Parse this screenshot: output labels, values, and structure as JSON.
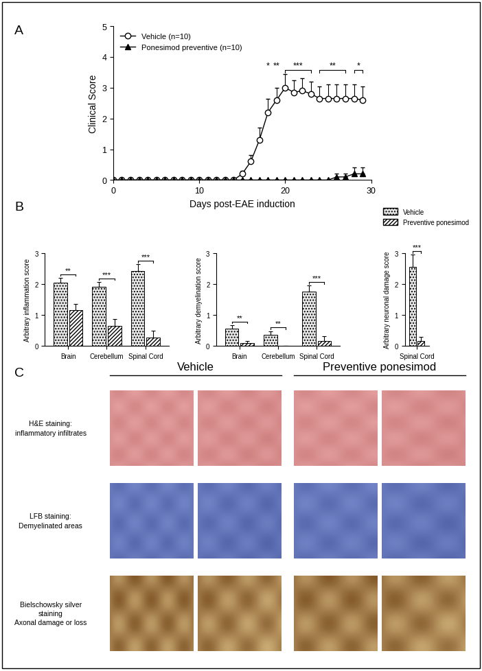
{
  "panel_labels": [
    "A",
    "B",
    "C"
  ],
  "chart_data": [
    {
      "type": "line",
      "xlabel": "Days post-EAE induction",
      "ylabel": "Clinical Score",
      "x": [
        0,
        1,
        2,
        3,
        4,
        5,
        6,
        7,
        8,
        9,
        10,
        11,
        12,
        13,
        14,
        15,
        16,
        17,
        18,
        19,
        20,
        21,
        22,
        23,
        24,
        25,
        26,
        27,
        28,
        29
      ],
      "series": [
        {
          "name": "Vehicle (n=10)",
          "color": "#000000",
          "marker": "o",
          "values": [
            0,
            0,
            0,
            0,
            0,
            0,
            0,
            0,
            0,
            0,
            0,
            0,
            0,
            0,
            0,
            0.2,
            0.6,
            1.3,
            2.2,
            2.6,
            3.0,
            2.85,
            2.9,
            2.8,
            2.65,
            2.65,
            2.65,
            2.65,
            2.65,
            2.6
          ],
          "errors": [
            0,
            0,
            0,
            0,
            0,
            0,
            0,
            0,
            0,
            0,
            0,
            0,
            0,
            0,
            0,
            0.1,
            0.2,
            0.4,
            0.45,
            0.4,
            0.45,
            0.4,
            0.4,
            0.4,
            0.4,
            0.45,
            0.45,
            0.45,
            0.45,
            0.45
          ]
        },
        {
          "name": "Ponesimod preventive (n=10)",
          "color": "#000000",
          "marker": "^",
          "values": [
            0,
            0,
            0,
            0,
            0,
            0,
            0,
            0,
            0,
            0,
            0,
            0,
            0,
            0,
            0,
            0,
            0,
            0,
            0,
            0,
            0,
            0,
            0,
            0,
            0,
            0,
            0.1,
            0.1,
            0.2,
            0.2
          ],
          "errors": [
            0,
            0,
            0,
            0,
            0,
            0,
            0,
            0,
            0,
            0,
            0,
            0,
            0,
            0,
            0,
            0,
            0,
            0,
            0,
            0,
            0,
            0,
            0,
            0,
            0,
            0,
            0.1,
            0.1,
            0.2,
            0.2
          ]
        }
      ],
      "annotations": [
        {
          "text": "*",
          "x": [
            18,
            18
          ]
        },
        {
          "text": "**",
          "x": [
            19,
            19
          ]
        },
        {
          "text": "***",
          "x": [
            20,
            23
          ]
        },
        {
          "text": "**",
          "x": [
            24,
            27
          ]
        },
        {
          "text": "*",
          "x": [
            28,
            29
          ]
        }
      ],
      "xlim": [
        0,
        30
      ],
      "xticks": [
        0,
        10,
        20,
        30
      ],
      "ylim": [
        0,
        5
      ],
      "yticks": [
        0,
        1,
        2,
        3,
        4,
        5
      ],
      "legend": "upper left"
    },
    {
      "type": "bar",
      "ylabel": "Arbitrary inflammation score",
      "categories": [
        "Brain",
        "Cerebellum",
        "Spinal Cord"
      ],
      "series": [
        {
          "name": "Vehicle",
          "color": "#e6e6e6",
          "values": [
            2.05,
            1.92,
            2.42
          ],
          "errors": [
            0.15,
            0.15,
            0.22
          ]
        },
        {
          "name": "Preventive ponesimod",
          "color": "#ffffff",
          "values": [
            1.15,
            0.65,
            0.27
          ],
          "errors": [
            0.2,
            0.22,
            0.22
          ]
        }
      ],
      "annotations": [
        "**",
        "***",
        "***"
      ],
      "ylim": [
        0,
        3
      ],
      "yticks": [
        0,
        1,
        2,
        3
      ]
    },
    {
      "type": "bar",
      "ylabel": "Arbitrary demyelination score",
      "categories": [
        "Brain",
        "Cerebellum",
        "Spinal Cord"
      ],
      "series": [
        {
          "name": "Vehicle",
          "color": "#e6e6e6",
          "values": [
            0.55,
            0.35,
            1.75
          ],
          "errors": [
            0.12,
            0.13,
            0.2
          ]
        },
        {
          "name": "Preventive ponesimod",
          "color": "#ffffff",
          "values": [
            0.1,
            0.0,
            0.15
          ],
          "errors": [
            0.05,
            0.0,
            0.17
          ]
        }
      ],
      "annotations": [
        "**",
        "**",
        "***"
      ],
      "ylim": [
        0,
        3
      ],
      "yticks": [
        0,
        1,
        2,
        3
      ]
    },
    {
      "type": "bar",
      "ylabel": "Arbitrary neuronal damage score",
      "categories": [
        "Spinal Cord"
      ],
      "series": [
        {
          "name": "Vehicle",
          "color": "#e6e6e6",
          "values": [
            2.55
          ],
          "errors": [
            0.4
          ]
        },
        {
          "name": "Preventive ponesimod",
          "color": "#ffffff",
          "values": [
            0.15
          ],
          "errors": [
            0.15
          ]
        }
      ],
      "annotations": [
        "***"
      ],
      "ylim": [
        0,
        3
      ],
      "yticks": [
        0,
        1,
        2,
        3
      ],
      "legend": "upper right"
    }
  ],
  "image_panel": {
    "columns": [
      "Vehicle",
      "Preventive ponesimod"
    ],
    "rows": [
      "H&E staining:\ninflammatory infiltrates",
      "LFB staining:\nDemyelinated areas",
      "Bielschowsky silver\nstaining\nAxonal damage or loss"
    ]
  }
}
